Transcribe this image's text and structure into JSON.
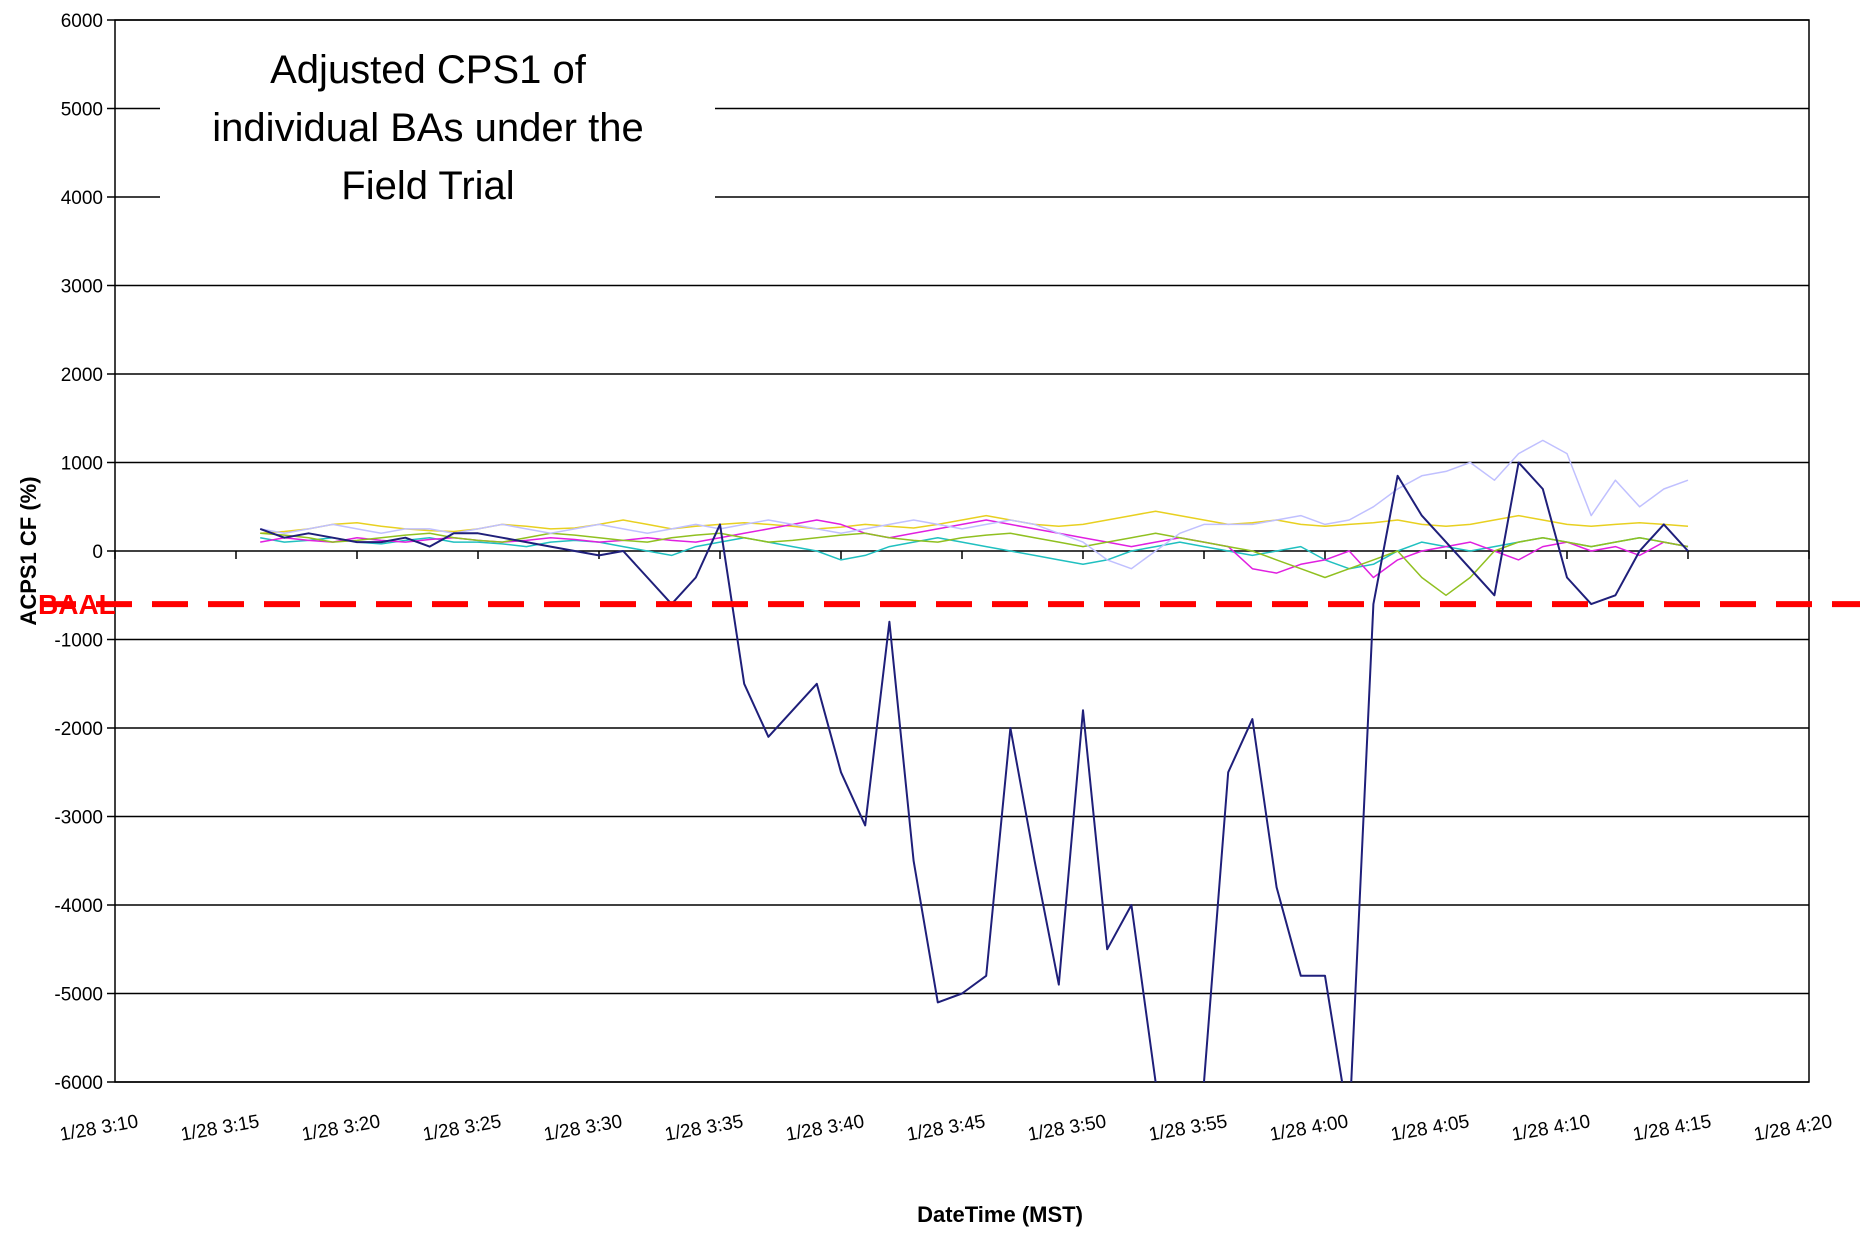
{
  "chart_data": {
    "type": "line",
    "ylabel": "ACPS1 CF (%)",
    "xlabel": "DateTime (MST)",
    "annotation_lines": [
      "Adjusted CPS1 of",
      "individual BAs under the",
      "Field Trial"
    ],
    "reference_line": {
      "label": "BAAL",
      "value": -600,
      "color": "#ff0000"
    },
    "ylim": [
      -6000,
      6000
    ],
    "yticks": [
      -6000,
      -5000,
      -4000,
      -3000,
      -2000,
      -1000,
      0,
      1000,
      2000,
      3000,
      4000,
      5000,
      6000
    ],
    "xlim": [
      "1/28 3:10",
      "1/28 4:20"
    ],
    "xticks": [
      "1/28 3:10",
      "1/28 3:15",
      "1/28 3:20",
      "1/28 3:25",
      "1/28 3:30",
      "1/28 3:35",
      "1/28 3:40",
      "1/28 3:45",
      "1/28 3:50",
      "1/28 3:55",
      "1/28 4:00",
      "1/28 4:05",
      "1/28 4:10",
      "1/28 4:15",
      "1/28 4:20"
    ],
    "grid": true,
    "x": [
      "1/28 3:16",
      "1/28 3:17",
      "1/28 3:18",
      "1/28 3:19",
      "1/28 3:20",
      "1/28 3:21",
      "1/28 3:22",
      "1/28 3:23",
      "1/28 3:24",
      "1/28 3:25",
      "1/28 3:26",
      "1/28 3:27",
      "1/28 3:28",
      "1/28 3:29",
      "1/28 3:30",
      "1/28 3:31",
      "1/28 3:32",
      "1/28 3:33",
      "1/28 3:34",
      "1/28 3:35",
      "1/28 3:36",
      "1/28 3:37",
      "1/28 3:38",
      "1/28 3:39",
      "1/28 3:40",
      "1/28 3:41",
      "1/28 3:42",
      "1/28 3:43",
      "1/28 3:44",
      "1/28 3:45",
      "1/28 3:46",
      "1/28 3:47",
      "1/28 3:48",
      "1/28 3:49",
      "1/28 3:50",
      "1/28 3:51",
      "1/28 3:52",
      "1/28 3:53",
      "1/28 3:54",
      "1/28 3:55",
      "1/28 3:56",
      "1/28 3:57",
      "1/28 3:58",
      "1/28 3:59",
      "1/28 4:00",
      "1/28 4:01",
      "1/28 4:02",
      "1/28 4:03",
      "1/28 4:04",
      "1/28 4:05",
      "1/28 4:06",
      "1/28 4:07",
      "1/28 4:08",
      "1/28 4:09",
      "1/28 4:10",
      "1/28 4:11",
      "1/28 4:12",
      "1/28 4:13",
      "1/28 4:14",
      "1/28 4:15"
    ],
    "series": [
      {
        "color": "#e8d020",
        "values": [
          200,
          220,
          250,
          300,
          320,
          280,
          250,
          230,
          220,
          250,
          300,
          280,
          250,
          260,
          300,
          350,
          300,
          250,
          280,
          300,
          320,
          300,
          280,
          250,
          270,
          300,
          280,
          260,
          300,
          350,
          400,
          350,
          300,
          280,
          300,
          350,
          400,
          450,
          400,
          350,
          300,
          320,
          350,
          300,
          280,
          300,
          320,
          350,
          300,
          280,
          300,
          350,
          400,
          350,
          300,
          280,
          300,
          320,
          300,
          280
        ]
      },
      {
        "color": "#20c0c0",
        "values": [
          150,
          100,
          120,
          150,
          100,
          80,
          120,
          150,
          100,
          100,
          80,
          50,
          100,
          120,
          100,
          50,
          0,
          -50,
          50,
          100,
          150,
          100,
          50,
          0,
          -100,
          -50,
          50,
          100,
          150,
          100,
          50,
          0,
          -50,
          -100,
          -150,
          -100,
          0,
          50,
          100,
          50,
          0,
          -50,
          0,
          50,
          -100,
          -200,
          -150,
          0,
          100,
          50,
          0,
          50,
          100,
          150,
          100,
          50,
          100,
          150,
          100,
          50
        ]
      },
      {
        "color": "#e020e0",
        "values": [
          100,
          150,
          120,
          100,
          150,
          120,
          100,
          130,
          150,
          120,
          100,
          120,
          150,
          130,
          100,
          120,
          150,
          120,
          100,
          150,
          200,
          250,
          300,
          350,
          300,
          200,
          150,
          200,
          250,
          300,
          350,
          300,
          250,
          200,
          150,
          100,
          50,
          100,
          150,
          100,
          50,
          -200,
          -250,
          -150,
          -100,
          0,
          -300,
          -100,
          0,
          50,
          100,
          0,
          -100,
          50,
          100,
          0,
          50,
          -50,
          100,
          50
        ]
      },
      {
        "color": "#90c020",
        "values": [
          200,
          180,
          150,
          100,
          120,
          150,
          180,
          200,
          150,
          120,
          100,
          150,
          200,
          180,
          150,
          120,
          100,
          150,
          180,
          200,
          150,
          100,
          120,
          150,
          180,
          200,
          150,
          120,
          100,
          150,
          180,
          200,
          150,
          100,
          50,
          100,
          150,
          200,
          150,
          100,
          50,
          0,
          -100,
          -200,
          -300,
          -200,
          -100,
          0,
          -300,
          -500,
          -300,
          0,
          100,
          150,
          100,
          50,
          100,
          150,
          100,
          50
        ]
      },
      {
        "color": "#c0c0ff",
        "values": [
          250,
          200,
          250,
          300,
          250,
          200,
          250,
          250,
          200,
          250,
          300,
          250,
          200,
          250,
          300,
          250,
          200,
          250,
          300,
          250,
          300,
          350,
          300,
          250,
          200,
          250,
          300,
          350,
          300,
          250,
          300,
          350,
          300,
          200,
          100,
          -100,
          -200,
          0,
          200,
          300,
          300,
          300,
          350,
          400,
          300,
          350,
          500,
          700,
          850,
          900,
          1000,
          800,
          1100,
          1250,
          1100,
          400,
          800,
          500,
          700,
          800
        ]
      },
      {
        "color": "#1f1f7a",
        "values": [
          250,
          150,
          200,
          150,
          100,
          100,
          150,
          50,
          200,
          200,
          150,
          100,
          50,
          0,
          -50,
          0,
          -300,
          -600,
          -300,
          300,
          -1500,
          -2100,
          -1800,
          -1500,
          -2500,
          -3100,
          -800,
          -3500,
          -5100,
          -5000,
          -4800,
          -2000,
          -3500,
          -4900,
          -1800,
          -4500,
          -4000,
          -6000,
          -6500,
          -6000,
          -2500,
          -1900,
          -3800,
          -4800,
          -4800,
          -6500,
          -600,
          850,
          400,
          100,
          -200,
          -500,
          1000,
          700,
          -300,
          -600,
          -500,
          0,
          300,
          0
        ]
      }
    ]
  }
}
